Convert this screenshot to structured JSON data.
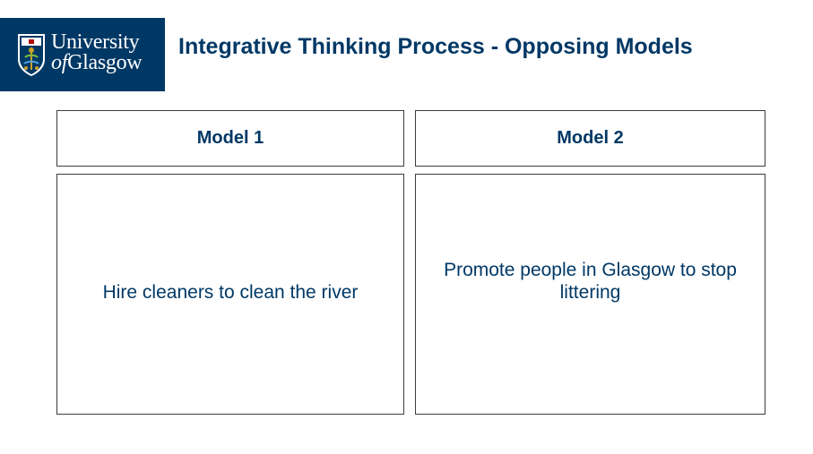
{
  "logo": {
    "line1": "University",
    "line2_prefix": "of",
    "line2_rest": "Glasgow",
    "background": "#003865"
  },
  "title": "Integrative Thinking Process - Opposing Models",
  "models": [
    {
      "heading": "Model 1",
      "description": "Hire cleaners to clean the river"
    },
    {
      "heading": "Model 2",
      "description": "Promote people in Glasgow to stop littering"
    }
  ],
  "colors": {
    "accent": "#003865",
    "border": "#3d3d3d"
  }
}
